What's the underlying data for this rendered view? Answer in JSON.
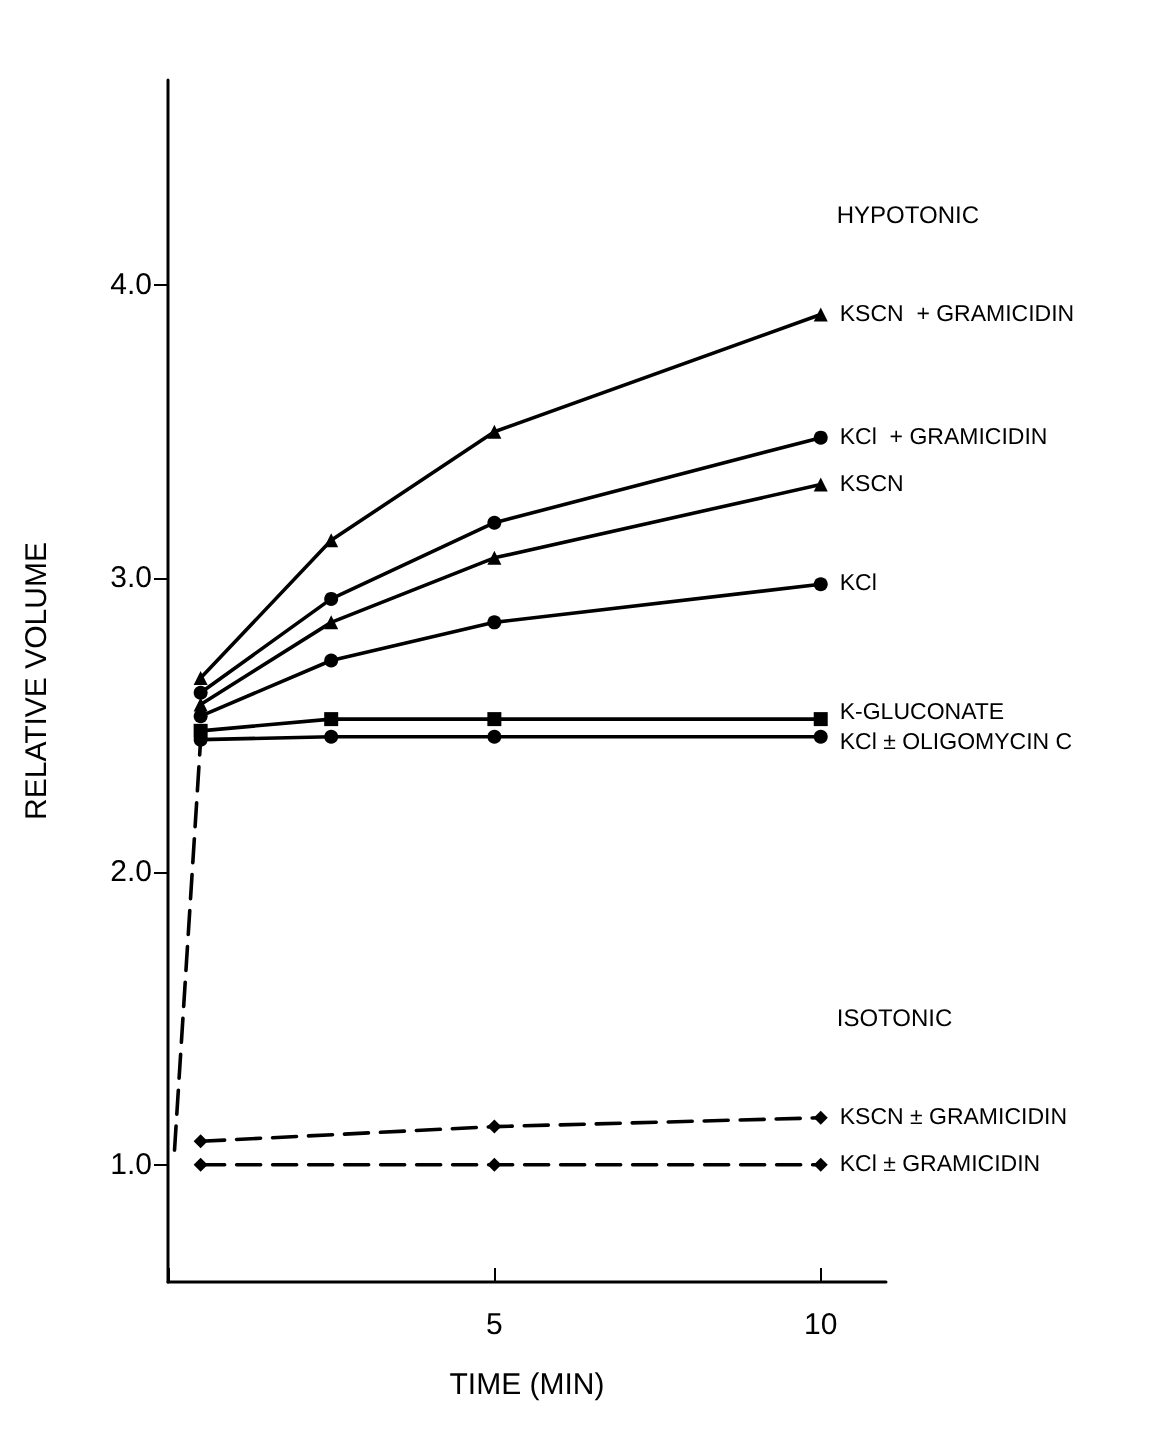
{
  "chart_data": {
    "type": "line",
    "xlabel": "TIME (MIN)",
    "ylabel": "RELATIVE VOLUME",
    "annotations": [
      "HYPOTONIC",
      "ISOTONIC"
    ],
    "xlim": [
      0,
      11
    ],
    "xticks": [
      {
        "value": 0,
        "label": null
      },
      5,
      10
    ],
    "ylim": [
      0.6,
      4.7
    ],
    "yticks": [
      {
        "value": 1,
        "label": "1.0"
      },
      {
        "value": 2,
        "label": "2.0"
      },
      {
        "value": 3,
        "label": "3.0"
      },
      {
        "value": 4,
        "label": "4.0"
      }
    ],
    "grid": false,
    "legend": false,
    "series": [
      {
        "name": "KSCN  + GRAMICIDIN",
        "color": "#000000",
        "marker": "triangle",
        "line_style": "solid",
        "x": [
          0.5,
          2.5,
          5,
          10
        ],
        "values": [
          2.66,
          3.13,
          3.5,
          3.9
        ]
      },
      {
        "name": "KCl  + GRAMICIDIN",
        "color": "#000000",
        "marker": "circle",
        "line_style": "solid",
        "x": [
          0.5,
          2.5,
          5,
          10
        ],
        "values": [
          2.61,
          2.93,
          3.19,
          3.48
        ]
      },
      {
        "name": "KSCN",
        "color": "#000000",
        "marker": "triangle",
        "line_style": "solid",
        "x": [
          0.5,
          2.5,
          5,
          10
        ],
        "values": [
          2.57,
          2.85,
          3.07,
          3.32
        ]
      },
      {
        "name": "KCl",
        "color": "#000000",
        "marker": "circle",
        "line_style": "solid",
        "x": [
          0.5,
          2.5,
          5,
          10
        ],
        "values": [
          2.53,
          2.72,
          2.85,
          2.98
        ]
      },
      {
        "name": "K-GLUCONATE",
        "color": "#000000",
        "marker": "square",
        "line_style": "solid",
        "x": [
          0.5,
          2.5,
          5,
          10
        ],
        "values": [
          2.48,
          2.52,
          2.52,
          2.52
        ]
      },
      {
        "name": "KCl ± OLIGOMYCIN C",
        "color": "#000000",
        "marker": "circle",
        "line_style": "solid",
        "x": [
          0.5,
          2.5,
          5,
          10
        ],
        "values": [
          2.45,
          2.46,
          2.46,
          2.46
        ]
      },
      {
        "color": "#000000",
        "marker": "none",
        "line_style": "dashed",
        "x": [
          0.1,
          0.5
        ],
        "values": [
          1.05,
          2.45
        ]
      },
      {
        "name": "KSCN ± GRAMICIDIN",
        "color": "#000000",
        "marker": "diamond",
        "line_style": "dashed",
        "x": [
          0.5,
          5,
          10
        ],
        "values": [
          1.08,
          1.13,
          1.16
        ]
      },
      {
        "name": "KCl ± GRAMICIDIN",
        "color": "#000000",
        "marker": "diamond",
        "line_style": "dashed",
        "x": [
          0.5,
          5,
          10
        ],
        "values": [
          1.0,
          1.0,
          1.0
        ]
      }
    ]
  }
}
